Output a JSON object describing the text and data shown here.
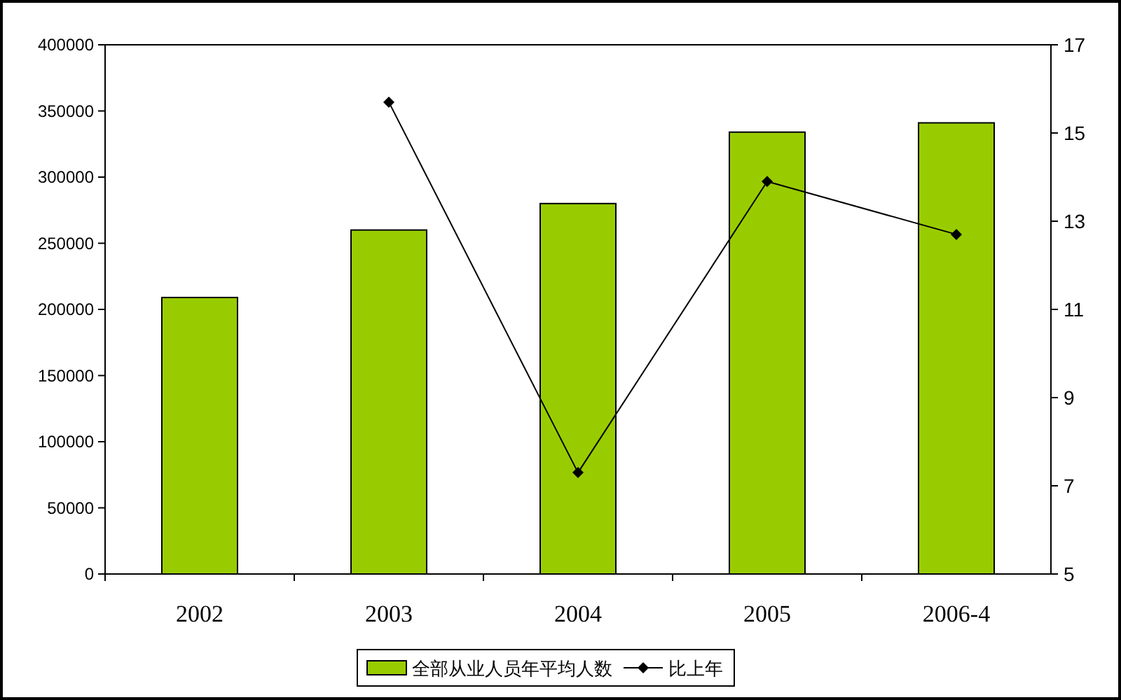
{
  "chart_data": {
    "type": "bar",
    "categories": [
      "2002",
      "2003",
      "2004",
      "2005",
      "2006-4"
    ],
    "series": [
      {
        "name": "全部从业人员年平均人数",
        "color": "#99cc00",
        "values": [
          209000,
          260000,
          280000,
          334000,
          341000
        ]
      },
      {
        "name": "比上年",
        "type": "line",
        "axis": "y2",
        "color": "#000000",
        "marker": "diamond",
        "values": [
          null,
          15.7,
          7.3,
          13.9,
          12.7
        ]
      }
    ],
    "ylim": [
      0,
      400000
    ],
    "yticks": [
      0,
      50000,
      100000,
      150000,
      200000,
      250000,
      300000,
      350000,
      400000
    ],
    "y2lim": [
      5,
      17
    ],
    "y2ticks": [
      5,
      7,
      9,
      11,
      13,
      15,
      17
    ],
    "grid": false,
    "legend": "bottom"
  }
}
